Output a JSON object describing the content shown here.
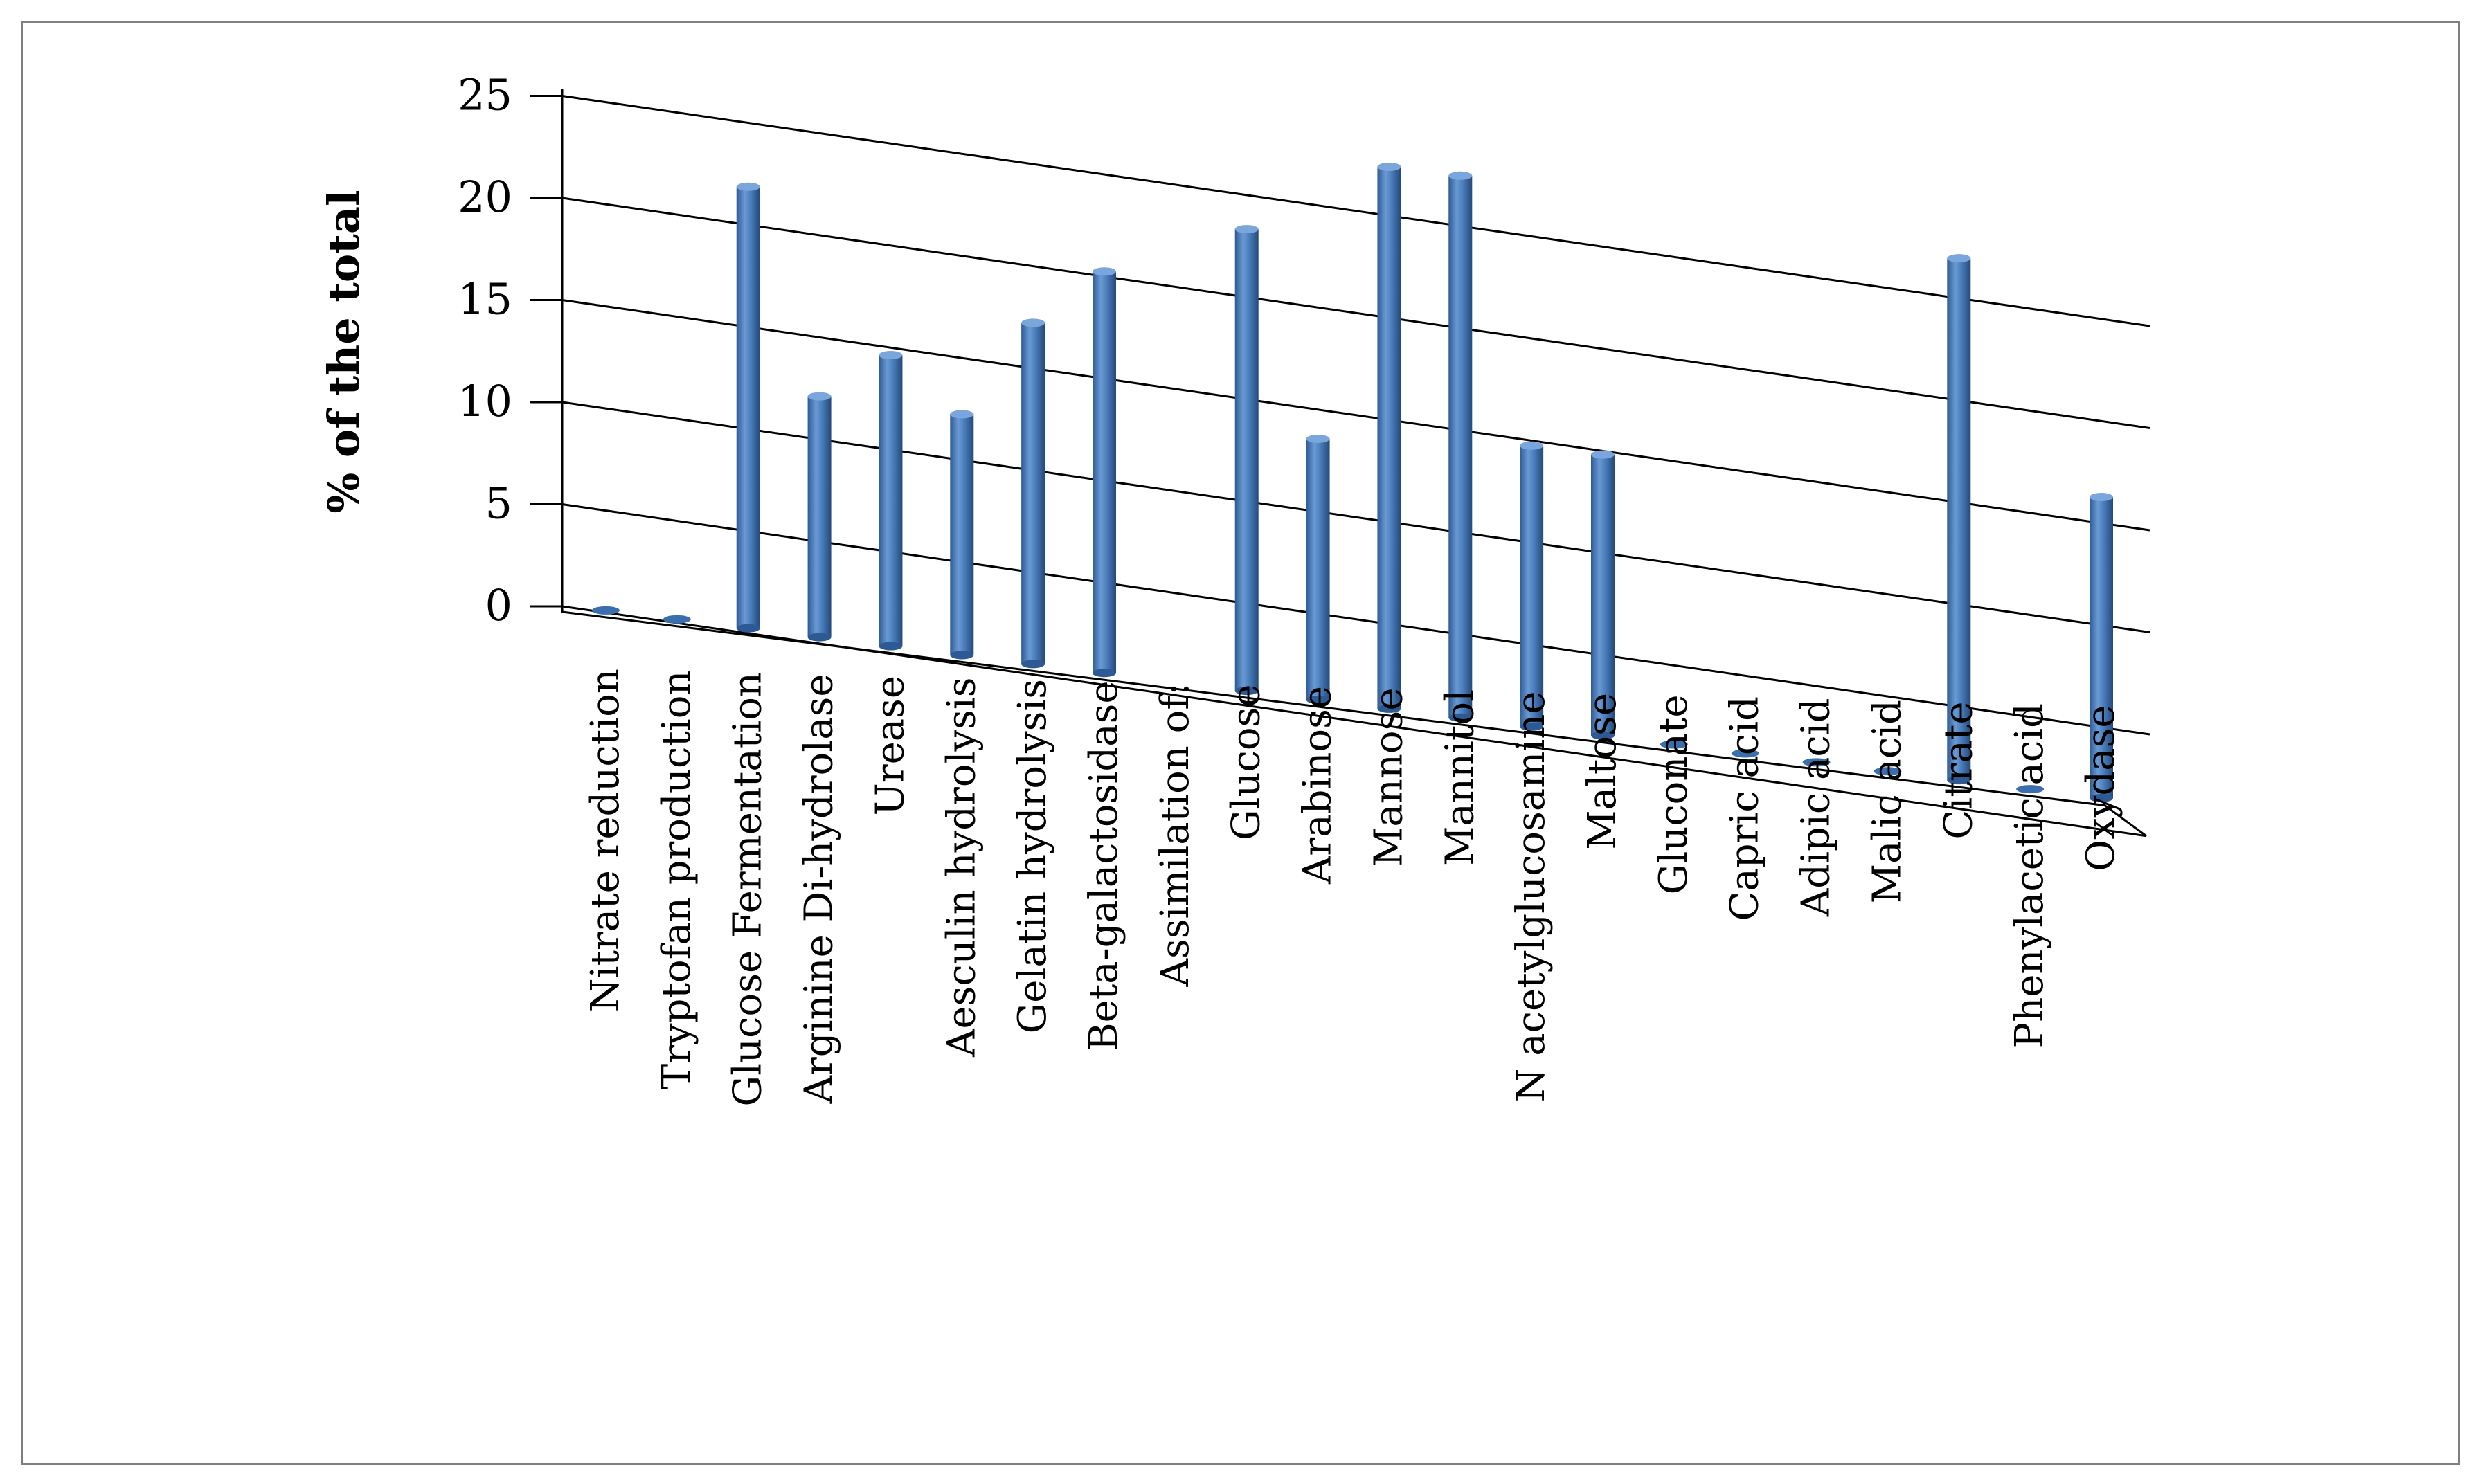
{
  "chart_data": {
    "type": "bar",
    "style": "3d-cylinder",
    "title": "",
    "xlabel": "",
    "ylabel": "% of the total",
    "ylim": [
      0,
      25
    ],
    "yticks": [
      "0",
      "5",
      "10",
      "15",
      "20",
      "25"
    ],
    "grid": true,
    "legend": "none",
    "bar_color": "#4a7ebb",
    "categories": [
      "Nitrate reduction",
      "Tryptofan production",
      "Glucose Fermentation",
      "Arginine Di-hydrolase",
      "Urease",
      "Aesculin hydrolysis",
      "Gelatin hydrolysis",
      "Beta-galactosidase",
      "Assimilation of:",
      "Glucose",
      "Arabinose",
      "Mannose",
      "Mannitol",
      "N acetylglucosamine",
      "Maltose",
      "Gluconate",
      "Capric acid",
      "Adipic acid",
      "Malic acid",
      "Citrate",
      "Phenylacetic acid",
      "Oxydase"
    ],
    "values": [
      0,
      0,
      22,
      12,
      14.5,
      12,
      17,
      20,
      null,
      23,
      13,
      27,
      27,
      14,
      14,
      0,
      0,
      0,
      0,
      26,
      0,
      15
    ]
  }
}
